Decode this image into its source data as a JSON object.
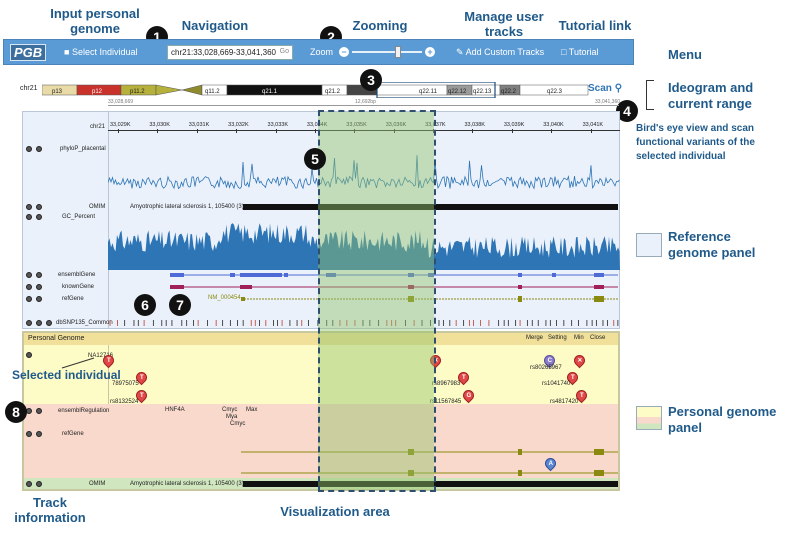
{
  "annotations": {
    "input_genome": "Input personal genome",
    "navigation": "Navigation",
    "zooming": "Zooming",
    "manage_tracks": "Manage user tracks",
    "tutorial_link": "Tutorial link",
    "menu": "Menu",
    "ideogram": "Ideogram and current range",
    "birds_eye": "Bird's eye view and scan functional variants of the selected individual",
    "reference_panel": "Reference genome panel",
    "personal_panel": "Personal genome panel",
    "selected_individual": "Selected individual",
    "track_information": "Track information",
    "visualization_area": "Visualization area",
    "numbers": [
      "1",
      "2",
      "3",
      "4",
      "5",
      "6",
      "7",
      "8"
    ]
  },
  "menubar": {
    "logo": "PGB",
    "select_individual": "Select Individual",
    "nav_value": "chr21:33,028,669-33,041,360",
    "nav_go": "Go",
    "zoom_label": "Zoom",
    "add_tracks": "Add Custom Tracks",
    "tutorial": "Tutorial"
  },
  "ideogram": {
    "chrom": "chr21",
    "bands": [
      "p13",
      "p12",
      "p11.2",
      "q11.2",
      "q21.1",
      "q21.2",
      "q22.11",
      "q22.12",
      "q22.13",
      "q22.2",
      "q22.3"
    ],
    "scan": "Scan",
    "range_left": "33,028,669",
    "range_mid": "12,692bp",
    "range_right": "33,041,360"
  },
  "reference": {
    "ruler_label": "chr21",
    "ticks": [
      "33,029K",
      "33,030K",
      "33,031K",
      "33,032K",
      "33,033K",
      "33,034K",
      "33,035K",
      "33,036K",
      "33,037K",
      "33,038K",
      "33,039K",
      "33,040K",
      "33,041K"
    ],
    "tracks": {
      "phylop": "phyloP_placental",
      "omim": "OMIM",
      "omim_label": "Amyotrophic lateral sclerosis 1, 105400 (3)",
      "gc": "GC_Percent",
      "ensembl": "ensemblGene",
      "known": "knownGene",
      "refgene": "refGene",
      "refgene_label": "NM_000454",
      "dbsnp": "dbSNP135_Common"
    }
  },
  "personal": {
    "title": "Personal Genome",
    "buttons": [
      "Merge",
      "Setting",
      "Min",
      "Close"
    ],
    "individual": "NA12716",
    "snps": [
      {
        "id": "78975075",
        "allele": "T"
      },
      {
        "id": "rs8132524",
        "allele": "T"
      },
      {
        "id": "rs8967983",
        "allele": "T"
      },
      {
        "id": "rs11567845",
        "allele": "G"
      },
      {
        "id": "rs80265967",
        "allele": "C"
      },
      {
        "id": "rs1041740",
        "allele": "T"
      },
      {
        "id": "rs4817420",
        "allele": "T"
      },
      {
        "id": "",
        "allele": "A"
      }
    ],
    "regulation_track": "ensemblRegulation",
    "regulation_labels": [
      "HNF4A",
      "Cmyc",
      "Max",
      "Mya",
      "Cmyc"
    ],
    "refgene_track": "refGene",
    "omim_track": "OMIM",
    "omim_label": "Amyotrophic lateral sclerosis 1, 105400 (3)"
  },
  "colors": {
    "menubar": "#5b9bd5",
    "reference_bg": "#eaf1fb",
    "personal_bg": "#fdfbc6",
    "regulation_bg": "#f9d9cc",
    "highlight": "#92c46b",
    "signal": "#2e75b6",
    "omim": "#111111"
  }
}
